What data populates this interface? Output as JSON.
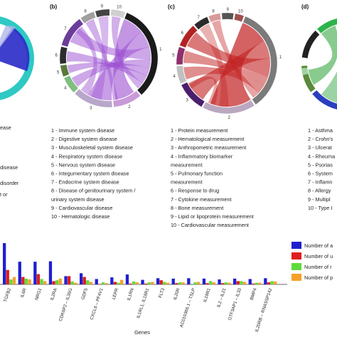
{
  "panels": [
    {
      "label": "",
      "legend": [
        "ease",
        "disease",
        "disorder",
        "t or"
      ]
    },
    {
      "label": "(b)",
      "segment_numbers": [
        "1",
        "2",
        "3",
        "4",
        "5",
        "6",
        "7",
        "8",
        "9",
        "10"
      ],
      "legend": [
        "1 - Immune system disease",
        "2 - Digestive system disease",
        "3 - Musculoskeletal system disease",
        "4 - Respiratory system disease",
        "5 - Nervous system disease",
        "6 - Integumentary system disease",
        "7 - Endocrine system disease",
        "8 - Disease of genitourinary system /",
        "urinary system disease",
        "9 - Cardiovascular disease",
        "10 - Hematologic disease"
      ],
      "colors": [
        "#1a1a1a",
        "#c89ad8",
        "#b7a7c9",
        "#7fbf7f",
        "#5a7a3a",
        "#2c2c2c",
        "#6a3d9a",
        "#a0a0a0",
        "#444444",
        "#d0d0d0"
      ],
      "chord_color": "#9b4fd1"
    },
    {
      "label": "(c)",
      "segment_numbers": [
        "1",
        "2",
        "3",
        "4",
        "5",
        "6",
        "7",
        "8",
        "9",
        "10"
      ],
      "legend": [
        "1 - Protein measurement",
        "2 - Hematological measurement",
        "3 - Anthropometric measurement",
        "4 - Inflammatory biomarker",
        "measurement",
        "5 - Pulmonary function",
        "measurement",
        "6 - Response to drug",
        "7 - Cytokine measurement",
        "8 - Bone measurement",
        "9 - Lipid or lipoprotein measurement",
        "10 - Cardiovascular measurement"
      ],
      "colors": [
        "#7a7a7a",
        "#b9a8c0",
        "#4b1e6b",
        "#c0c0c0",
        "#8e2f6e",
        "#b22222",
        "#2a2a2a",
        "#d99a9a",
        "#555555",
        "#a05050"
      ],
      "chord_color": "#c21f1f"
    },
    {
      "label": "(d)",
      "legend": [
        "1 - Asthma",
        "2 - Crohn's",
        "3 - Ulcerat",
        "4 - Rheuma",
        "5 - Psorias",
        "6 - System",
        "7 - Inflamn",
        "8 - Allergy",
        "9 - Multipl",
        "10 - Type I"
      ],
      "colors": [
        "#2db34a",
        "#d33cd3",
        "#888888",
        "#222222",
        "#5a8a3a",
        "#2a3fbf",
        "#9fd39f",
        "#aaaaaa"
      ],
      "chord_color": "#3aa845"
    }
  ],
  "chart_data": {
    "type": "bar",
    "xlabel": "Genes",
    "categories": [
      "TGFB2",
      "IL6R",
      "NRG1",
      "IL2RA",
      "CDK6P2 – IL36G",
      "GDF5",
      "CXCL6 – PF4V1",
      "LEPR",
      "IL1RN",
      "IL1RL1, IL18R1",
      "FLT3",
      "IL20R",
      "AC010366.1 – TSLP",
      "IL18R1",
      "IL2 – IL21",
      "GTF3AP1 – IL33",
      "BMP4",
      "IL20RB – RNASSP142"
    ],
    "series": [
      {
        "name": "Number of a",
        "color": "#1f1fcf",
        "values": [
          100,
          55,
          55,
          56,
          20,
          27,
          13,
          17,
          24,
          11,
          15,
          14,
          15,
          14,
          12,
          14,
          13,
          15
        ]
      },
      {
        "name": "Number of u",
        "color": "#e01e1e",
        "values": [
          35,
          18,
          25,
          8,
          20,
          18,
          1,
          6,
          2,
          2,
          10,
          3,
          0,
          3,
          3,
          8,
          2,
          5
        ]
      },
      {
        "name": "Number of r",
        "color": "#5edc3c",
        "values": [
          12,
          14,
          13,
          10,
          7,
          10,
          5,
          4,
          7,
          5,
          6,
          5,
          5,
          8,
          5,
          8,
          4,
          8
        ]
      },
      {
        "name": "Number of p",
        "color": "#f4a12a",
        "values": [
          18,
          12,
          8,
          14,
          4,
          6,
          3,
          11,
          5,
          6,
          4,
          5,
          6,
          5,
          4,
          6,
          4,
          7
        ]
      }
    ],
    "ylim": [
      0,
      100
    ],
    "grid": false,
    "legend_placement": "right"
  }
}
